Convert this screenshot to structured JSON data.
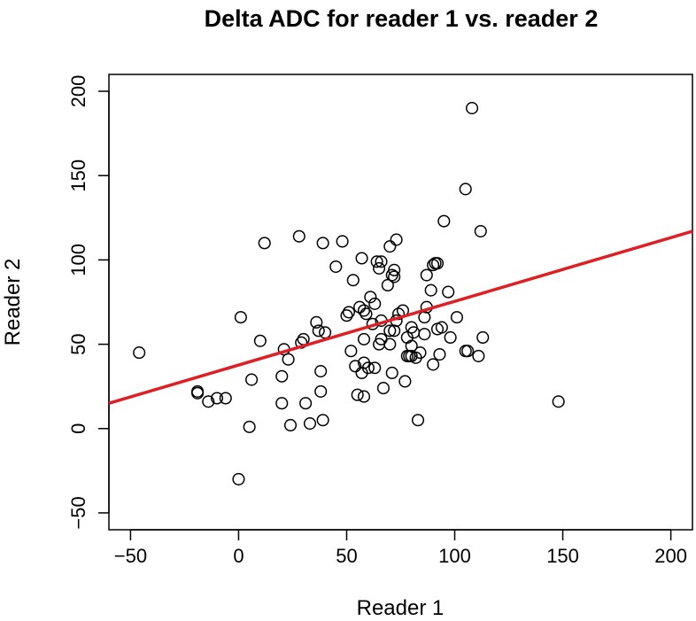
{
  "chart_data": {
    "type": "scatter",
    "title": "Delta ADC for reader 1 vs. reader 2",
    "xlabel": "Reader 1",
    "ylabel": "Reader 2",
    "xlim": [
      -60,
      210
    ],
    "ylim": [
      -60,
      210
    ],
    "x_ticks": [
      -50,
      0,
      50,
      100,
      150,
      200
    ],
    "y_ticks": [
      -50,
      0,
      50,
      100,
      150,
      200
    ],
    "x_tick_labels": [
      "−50",
      "0",
      "50",
      "100",
      "150",
      "200"
    ],
    "y_tick_labels": [
      "−50",
      "0",
      "50",
      "100",
      "150",
      "200"
    ],
    "grid": false,
    "legend": "none",
    "regression_line": {
      "x": [
        -60,
        210
      ],
      "y": [
        15,
        117
      ],
      "color": "#dd1f26"
    },
    "marker_color": "#000000",
    "points": [
      [
        -46,
        45
      ],
      [
        -19,
        22
      ],
      [
        -19,
        21
      ],
      [
        -14,
        16
      ],
      [
        -10,
        18
      ],
      [
        -6,
        18
      ],
      [
        0,
        -30
      ],
      [
        1,
        66
      ],
      [
        5,
        1
      ],
      [
        6,
        29
      ],
      [
        10,
        52
      ],
      [
        12,
        110
      ],
      [
        20,
        31
      ],
      [
        20,
        15
      ],
      [
        21,
        47
      ],
      [
        23,
        41
      ],
      [
        24,
        2
      ],
      [
        28,
        114
      ],
      [
        29,
        51
      ],
      [
        30,
        53
      ],
      [
        31,
        15
      ],
      [
        33,
        3
      ],
      [
        36,
        63
      ],
      [
        37,
        58
      ],
      [
        38,
        34
      ],
      [
        38,
        22
      ],
      [
        39,
        110
      ],
      [
        39,
        5
      ],
      [
        40,
        57
      ],
      [
        45,
        96
      ],
      [
        48,
        111
      ],
      [
        50,
        67
      ],
      [
        51,
        69
      ],
      [
        52,
        46
      ],
      [
        53,
        88
      ],
      [
        54,
        37
      ],
      [
        55,
        20
      ],
      [
        56,
        72
      ],
      [
        57,
        33
      ],
      [
        57,
        101
      ],
      [
        58,
        19
      ],
      [
        58,
        39
      ],
      [
        58,
        53
      ],
      [
        58,
        70
      ],
      [
        59,
        68
      ],
      [
        60,
        36
      ],
      [
        61,
        78
      ],
      [
        62,
        62
      ],
      [
        63,
        74
      ],
      [
        63,
        36
      ],
      [
        64,
        99
      ],
      [
        65,
        95
      ],
      [
        65,
        50
      ],
      [
        66,
        99
      ],
      [
        66,
        53
      ],
      [
        66,
        64
      ],
      [
        67,
        24
      ],
      [
        69,
        85
      ],
      [
        70,
        108
      ],
      [
        70,
        58
      ],
      [
        70,
        50
      ],
      [
        71,
        91
      ],
      [
        71,
        33
      ],
      [
        72,
        94
      ],
      [
        72,
        90
      ],
      [
        72,
        58
      ],
      [
        73,
        112
      ],
      [
        73,
        64
      ],
      [
        74,
        68
      ],
      [
        76,
        70
      ],
      [
        77,
        28
      ],
      [
        78,
        43
      ],
      [
        78,
        54
      ],
      [
        79,
        43
      ],
      [
        80,
        43
      ],
      [
        80,
        49
      ],
      [
        80,
        60
      ],
      [
        81,
        57
      ],
      [
        82,
        42
      ],
      [
        83,
        5
      ],
      [
        84,
        45
      ],
      [
        86,
        56
      ],
      [
        86,
        66
      ],
      [
        87,
        72
      ],
      [
        87,
        91
      ],
      [
        89,
        82
      ],
      [
        90,
        97
      ],
      [
        90,
        38
      ],
      [
        91,
        98
      ],
      [
        92,
        59
      ],
      [
        92,
        98
      ],
      [
        93,
        44
      ],
      [
        94,
        60
      ],
      [
        95,
        123
      ],
      [
        97,
        81
      ],
      [
        98,
        54
      ],
      [
        101,
        66
      ],
      [
        105,
        142
      ],
      [
        105,
        46
      ],
      [
        106,
        46
      ],
      [
        108,
        190
      ],
      [
        111,
        43
      ],
      [
        112,
        117
      ],
      [
        113,
        54
      ],
      [
        148,
        16
      ]
    ]
  }
}
